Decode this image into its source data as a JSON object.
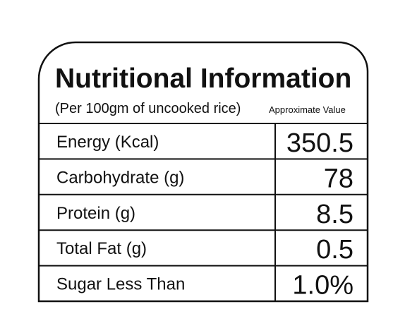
{
  "header": {
    "title": "Nutritional Information",
    "subtitle": "(Per 100gm of uncooked rice)",
    "note": "Approximate Value"
  },
  "table": {
    "rows": [
      [
        "Energy (Kcal)",
        "350.5"
      ],
      [
        "Carbohydrate (g)",
        "78"
      ],
      [
        "Protein (g)",
        "8.5"
      ],
      [
        "Total Fat (g)",
        "0.5"
      ],
      [
        "Sugar Less Than",
        "1.0%"
      ]
    ]
  }
}
